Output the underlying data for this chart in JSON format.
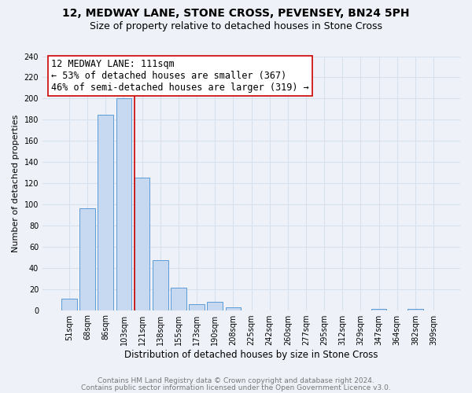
{
  "title1": "12, MEDWAY LANE, STONE CROSS, PEVENSEY, BN24 5PH",
  "title2": "Size of property relative to detached houses in Stone Cross",
  "xlabel": "Distribution of detached houses by size in Stone Cross",
  "ylabel": "Number of detached properties",
  "bar_labels": [
    "51sqm",
    "68sqm",
    "86sqm",
    "103sqm",
    "121sqm",
    "138sqm",
    "155sqm",
    "173sqm",
    "190sqm",
    "208sqm",
    "225sqm",
    "242sqm",
    "260sqm",
    "277sqm",
    "295sqm",
    "312sqm",
    "329sqm",
    "347sqm",
    "364sqm",
    "382sqm",
    "399sqm"
  ],
  "bar_values": [
    11,
    96,
    185,
    200,
    125,
    47,
    21,
    6,
    8,
    3,
    0,
    0,
    0,
    0,
    0,
    0,
    0,
    1,
    0,
    1,
    0
  ],
  "bar_color": "#c6d9f0",
  "bar_edge_color": "#5b9bd5",
  "marker_line_color": "#cc0000",
  "annotation_line1": "12 MEDWAY LANE: 111sqm",
  "annotation_line2": "← 53% of detached houses are smaller (367)",
  "annotation_line3": "46% of semi-detached houses are larger (319) →",
  "annotation_box_edge_color": "#cc0000",
  "annotation_box_face_color": "#ffffff",
  "ylim": [
    0,
    240
  ],
  "yticks": [
    0,
    20,
    40,
    60,
    80,
    100,
    120,
    140,
    160,
    180,
    200,
    220,
    240
  ],
  "footer_line1": "Contains HM Land Registry data © Crown copyright and database right 2024.",
  "footer_line2": "Contains public sector information licensed under the Open Government Licence v3.0.",
  "background_color": "#eef2f8",
  "grid_color": "#d8e0ee",
  "title1_fontsize": 10,
  "title2_fontsize": 9,
  "xlabel_fontsize": 8.5,
  "ylabel_fontsize": 8,
  "tick_fontsize": 7,
  "footer_fontsize": 6.5,
  "annotation_fontsize": 8.5
}
